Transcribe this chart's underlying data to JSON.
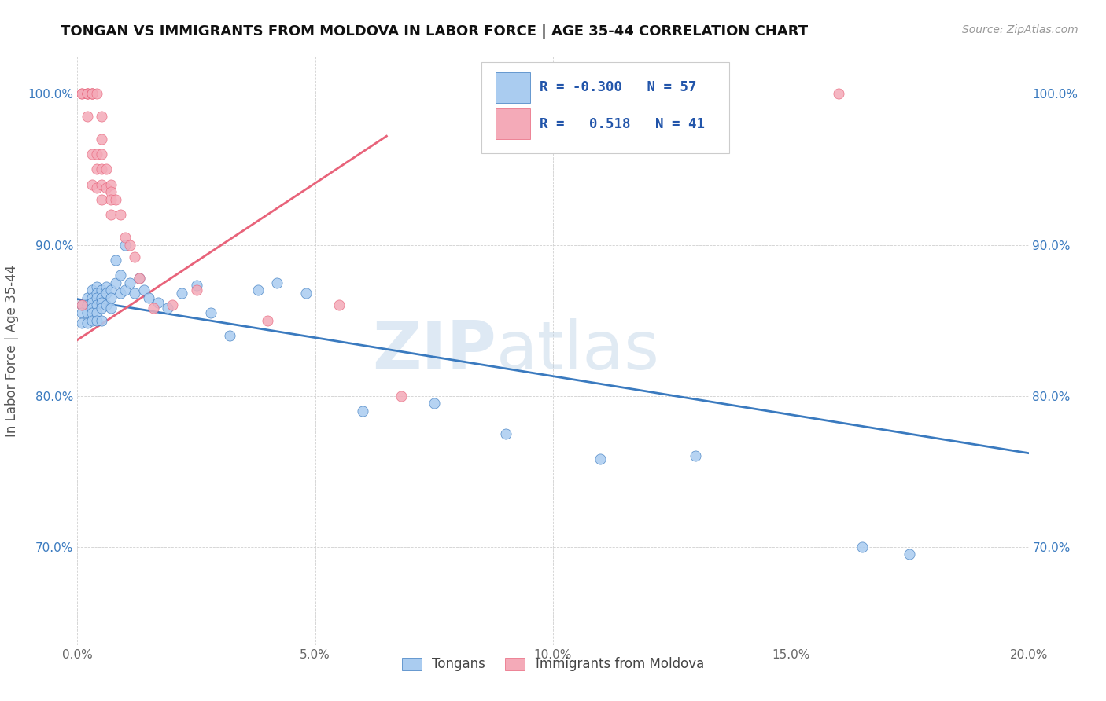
{
  "title": "TONGAN VS IMMIGRANTS FROM MOLDOVA IN LABOR FORCE | AGE 35-44 CORRELATION CHART",
  "source": "Source: ZipAtlas.com",
  "ylabel": "In Labor Force | Age 35-44",
  "x_min": 0.0,
  "x_max": 0.2,
  "y_min": 0.635,
  "y_max": 1.025,
  "x_ticks": [
    0.0,
    0.05,
    0.1,
    0.15,
    0.2
  ],
  "x_tick_labels": [
    "0.0%",
    "5.0%",
    "10.0%",
    "15.0%",
    "20.0%"
  ],
  "y_ticks": [
    0.7,
    0.8,
    0.9,
    1.0
  ],
  "y_tick_labels": [
    "70.0%",
    "80.0%",
    "90.0%",
    "100.0%"
  ],
  "blue_color": "#aaccf0",
  "pink_color": "#f4aab8",
  "blue_line_color": "#3a7abf",
  "pink_line_color": "#e8637a",
  "blue_R": -0.3,
  "blue_N": 57,
  "pink_R": 0.518,
  "pink_N": 41,
  "legend_label_blue": "Tongans",
  "legend_label_pink": "Immigrants from Moldova",
  "watermark_zip": "ZIP",
  "watermark_atlas": "atlas",
  "blue_scatter_x": [
    0.001,
    0.001,
    0.001,
    0.002,
    0.002,
    0.002,
    0.002,
    0.003,
    0.003,
    0.003,
    0.003,
    0.003,
    0.003,
    0.004,
    0.004,
    0.004,
    0.004,
    0.004,
    0.004,
    0.005,
    0.005,
    0.005,
    0.005,
    0.005,
    0.006,
    0.006,
    0.006,
    0.007,
    0.007,
    0.007,
    0.008,
    0.008,
    0.009,
    0.009,
    0.01,
    0.01,
    0.011,
    0.012,
    0.013,
    0.014,
    0.015,
    0.017,
    0.019,
    0.022,
    0.025,
    0.028,
    0.032,
    0.038,
    0.042,
    0.048,
    0.06,
    0.075,
    0.09,
    0.11,
    0.13,
    0.165,
    0.175
  ],
  "blue_scatter_y": [
    0.86,
    0.855,
    0.848,
    0.865,
    0.86,
    0.855,
    0.848,
    0.87,
    0.865,
    0.862,
    0.858,
    0.855,
    0.85,
    0.872,
    0.868,
    0.865,
    0.86,
    0.855,
    0.85,
    0.87,
    0.865,
    0.862,
    0.858,
    0.85,
    0.872,
    0.868,
    0.86,
    0.87,
    0.865,
    0.858,
    0.89,
    0.875,
    0.88,
    0.868,
    0.9,
    0.87,
    0.875,
    0.868,
    0.878,
    0.87,
    0.865,
    0.862,
    0.858,
    0.868,
    0.873,
    0.855,
    0.84,
    0.87,
    0.875,
    0.868,
    0.79,
    0.795,
    0.775,
    0.758,
    0.76,
    0.7,
    0.695
  ],
  "pink_scatter_x": [
    0.001,
    0.001,
    0.001,
    0.002,
    0.002,
    0.002,
    0.002,
    0.003,
    0.003,
    0.003,
    0.003,
    0.003,
    0.004,
    0.004,
    0.004,
    0.004,
    0.005,
    0.005,
    0.005,
    0.005,
    0.005,
    0.005,
    0.006,
    0.006,
    0.007,
    0.007,
    0.007,
    0.007,
    0.008,
    0.009,
    0.01,
    0.011,
    0.012,
    0.013,
    0.016,
    0.02,
    0.025,
    0.04,
    0.055,
    0.068,
    0.16
  ],
  "pink_scatter_y": [
    0.86,
    1.0,
    1.0,
    1.0,
    1.0,
    1.0,
    0.985,
    1.0,
    1.0,
    1.0,
    0.96,
    0.94,
    1.0,
    0.96,
    0.95,
    0.938,
    0.985,
    0.97,
    0.96,
    0.95,
    0.94,
    0.93,
    0.95,
    0.938,
    0.94,
    0.935,
    0.93,
    0.92,
    0.93,
    0.92,
    0.905,
    0.9,
    0.892,
    0.878,
    0.858,
    0.86,
    0.87,
    0.85,
    0.86,
    0.8,
    1.0
  ],
  "blue_trendline_x": [
    0.0,
    0.2
  ],
  "blue_trendline_y": [
    0.864,
    0.762
  ],
  "pink_trendline_x": [
    0.0,
    0.065
  ],
  "pink_trendline_y": [
    0.837,
    0.972
  ]
}
